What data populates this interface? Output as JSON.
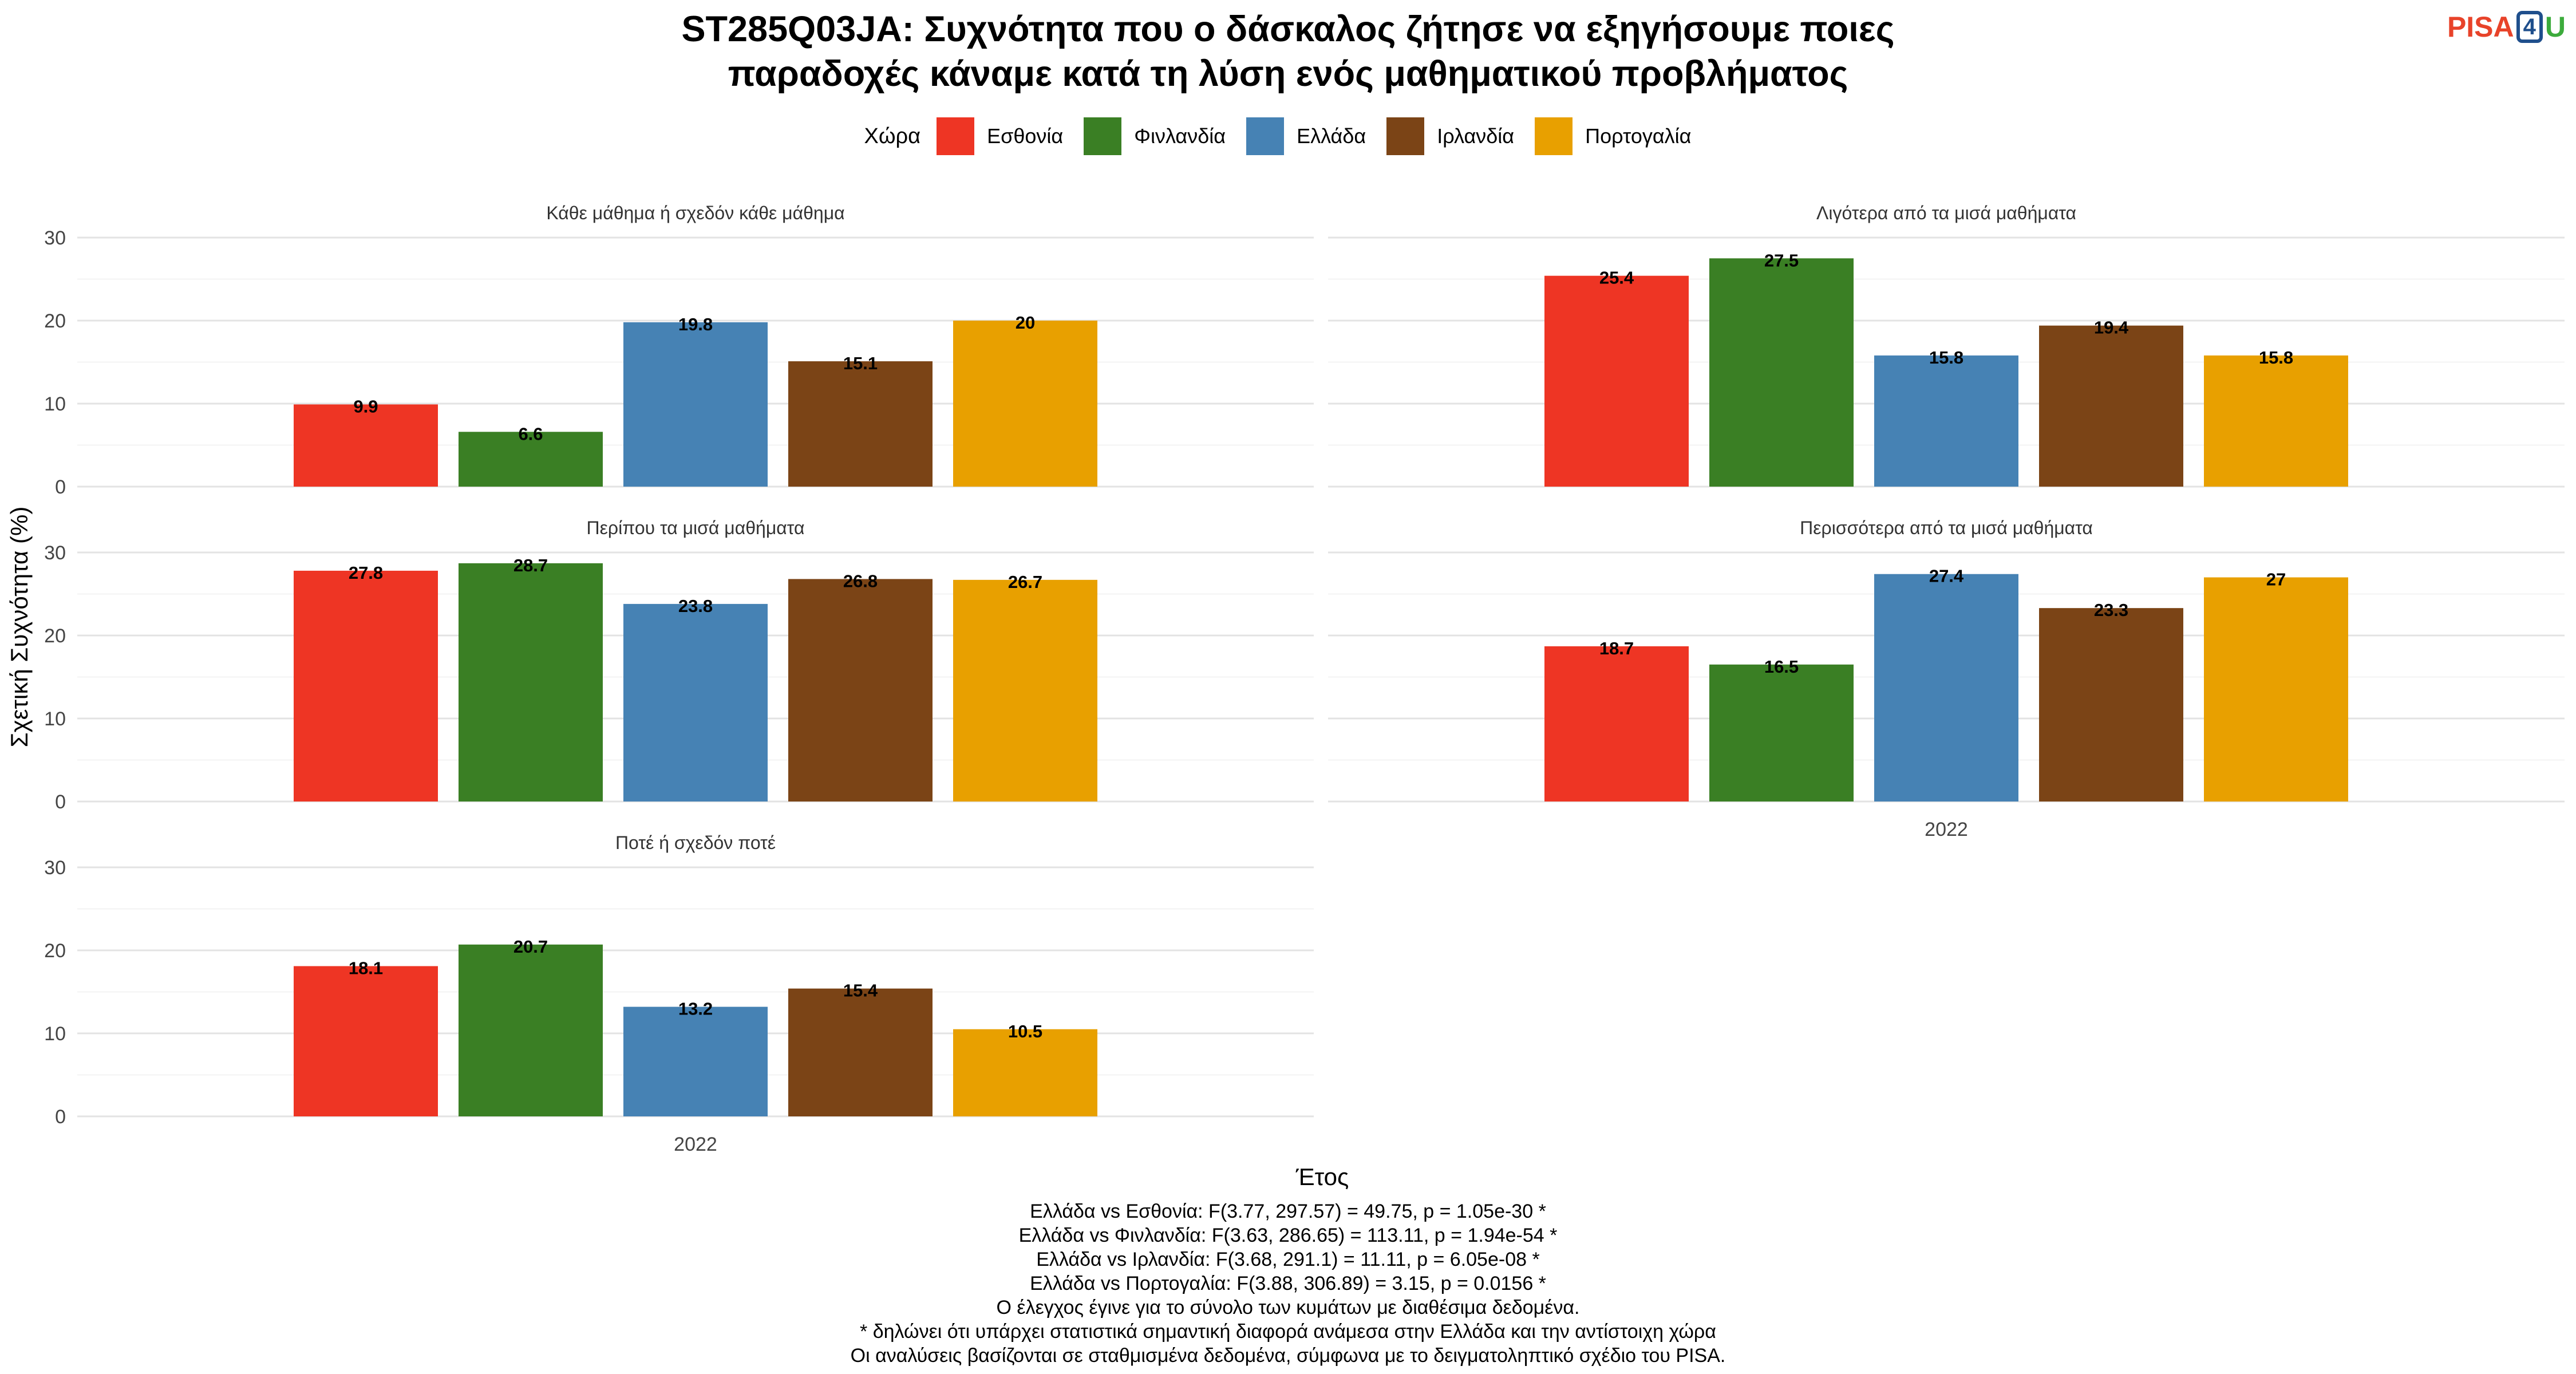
{
  "title_lines": [
    "ST285Q03JA: Συχνότητα που ο δάσκαλος ζήτησε να εξηγήσουμε ποιες",
    "παραδοχές κάναμε κατά τη λύση ενός μαθηματικού προβλήματος"
  ],
  "logo": {
    "pisa": "PISA",
    "four": "4",
    "u": "U"
  },
  "legend_title": "Χώρα",
  "footer_lines": [
    "Ελλάδα vs Εσθονία: F(3.77, 297.57) = 49.75, p = 1.05e-30 *",
    "Ελλάδα vs Φινλανδία: F(3.63, 286.65) = 113.11, p = 1.94e-54 *",
    "Ελλάδα vs Ιρλανδία: F(3.68, 291.1) = 11.11, p = 6.05e-08 *",
    "Ελλάδα vs Πορτογαλία: F(3.88, 306.89) = 3.15, p = 0.0156 *",
    "Ο έλεγχος έγινε για το σύνολο των κυμάτων με διαθέσιμα δεδομένα.",
    "* δηλώνει ότι υπάρχει στατιστικά σημαντική διαφορά ανάμεσα στην Ελλάδα και την αντίστοιχη χώρα",
    "Οι αναλύσεις βασίζονται σε σταθμισμένα δεδομένα, σύμφωνα με το δειγματοληπτικό σχέδιο του PISA."
  ],
  "chart_data": {
    "type": "bar",
    "xlabel": "Έτος",
    "ylabel": "Σχετική Συχνότητα (%)",
    "ylim": [
      0,
      30
    ],
    "yticks": [
      0,
      10,
      20,
      30
    ],
    "grid": true,
    "legend_position": "top",
    "x_category": "2022",
    "series": [
      {
        "name": "Εσθονία",
        "color": "#EE3524"
      },
      {
        "name": "Φινλανδία",
        "color": "#3A7F24"
      },
      {
        "name": "Ελλάδα",
        "color": "#4682B4"
      },
      {
        "name": "Ιρλανδία",
        "color": "#7B4416"
      },
      {
        "name": "Πορτογαλία",
        "color": "#E8A000"
      }
    ],
    "panels": [
      {
        "title": "Κάθε μάθημα ή σχεδόν κάθε μάθημα",
        "values": [
          9.9,
          6.6,
          19.8,
          15.1,
          20
        ],
        "show_x_label": false
      },
      {
        "title": "Λιγότερα από τα μισά μαθήματα",
        "values": [
          25.4,
          27.5,
          15.8,
          19.4,
          15.8
        ],
        "show_x_label": false
      },
      {
        "title": "Περίπου τα μισά μαθήματα",
        "values": [
          27.8,
          28.7,
          23.8,
          26.8,
          26.7
        ],
        "show_x_label": false
      },
      {
        "title": "Περισσότερα από τα μισά μαθήματα",
        "values": [
          18.7,
          16.5,
          27.4,
          23.3,
          27
        ],
        "show_x_label": true
      },
      {
        "title": "Ποτέ ή σχεδόν ποτέ",
        "values": [
          18.1,
          20.7,
          13.2,
          15.4,
          10.5
        ],
        "show_x_label": true
      }
    ]
  }
}
